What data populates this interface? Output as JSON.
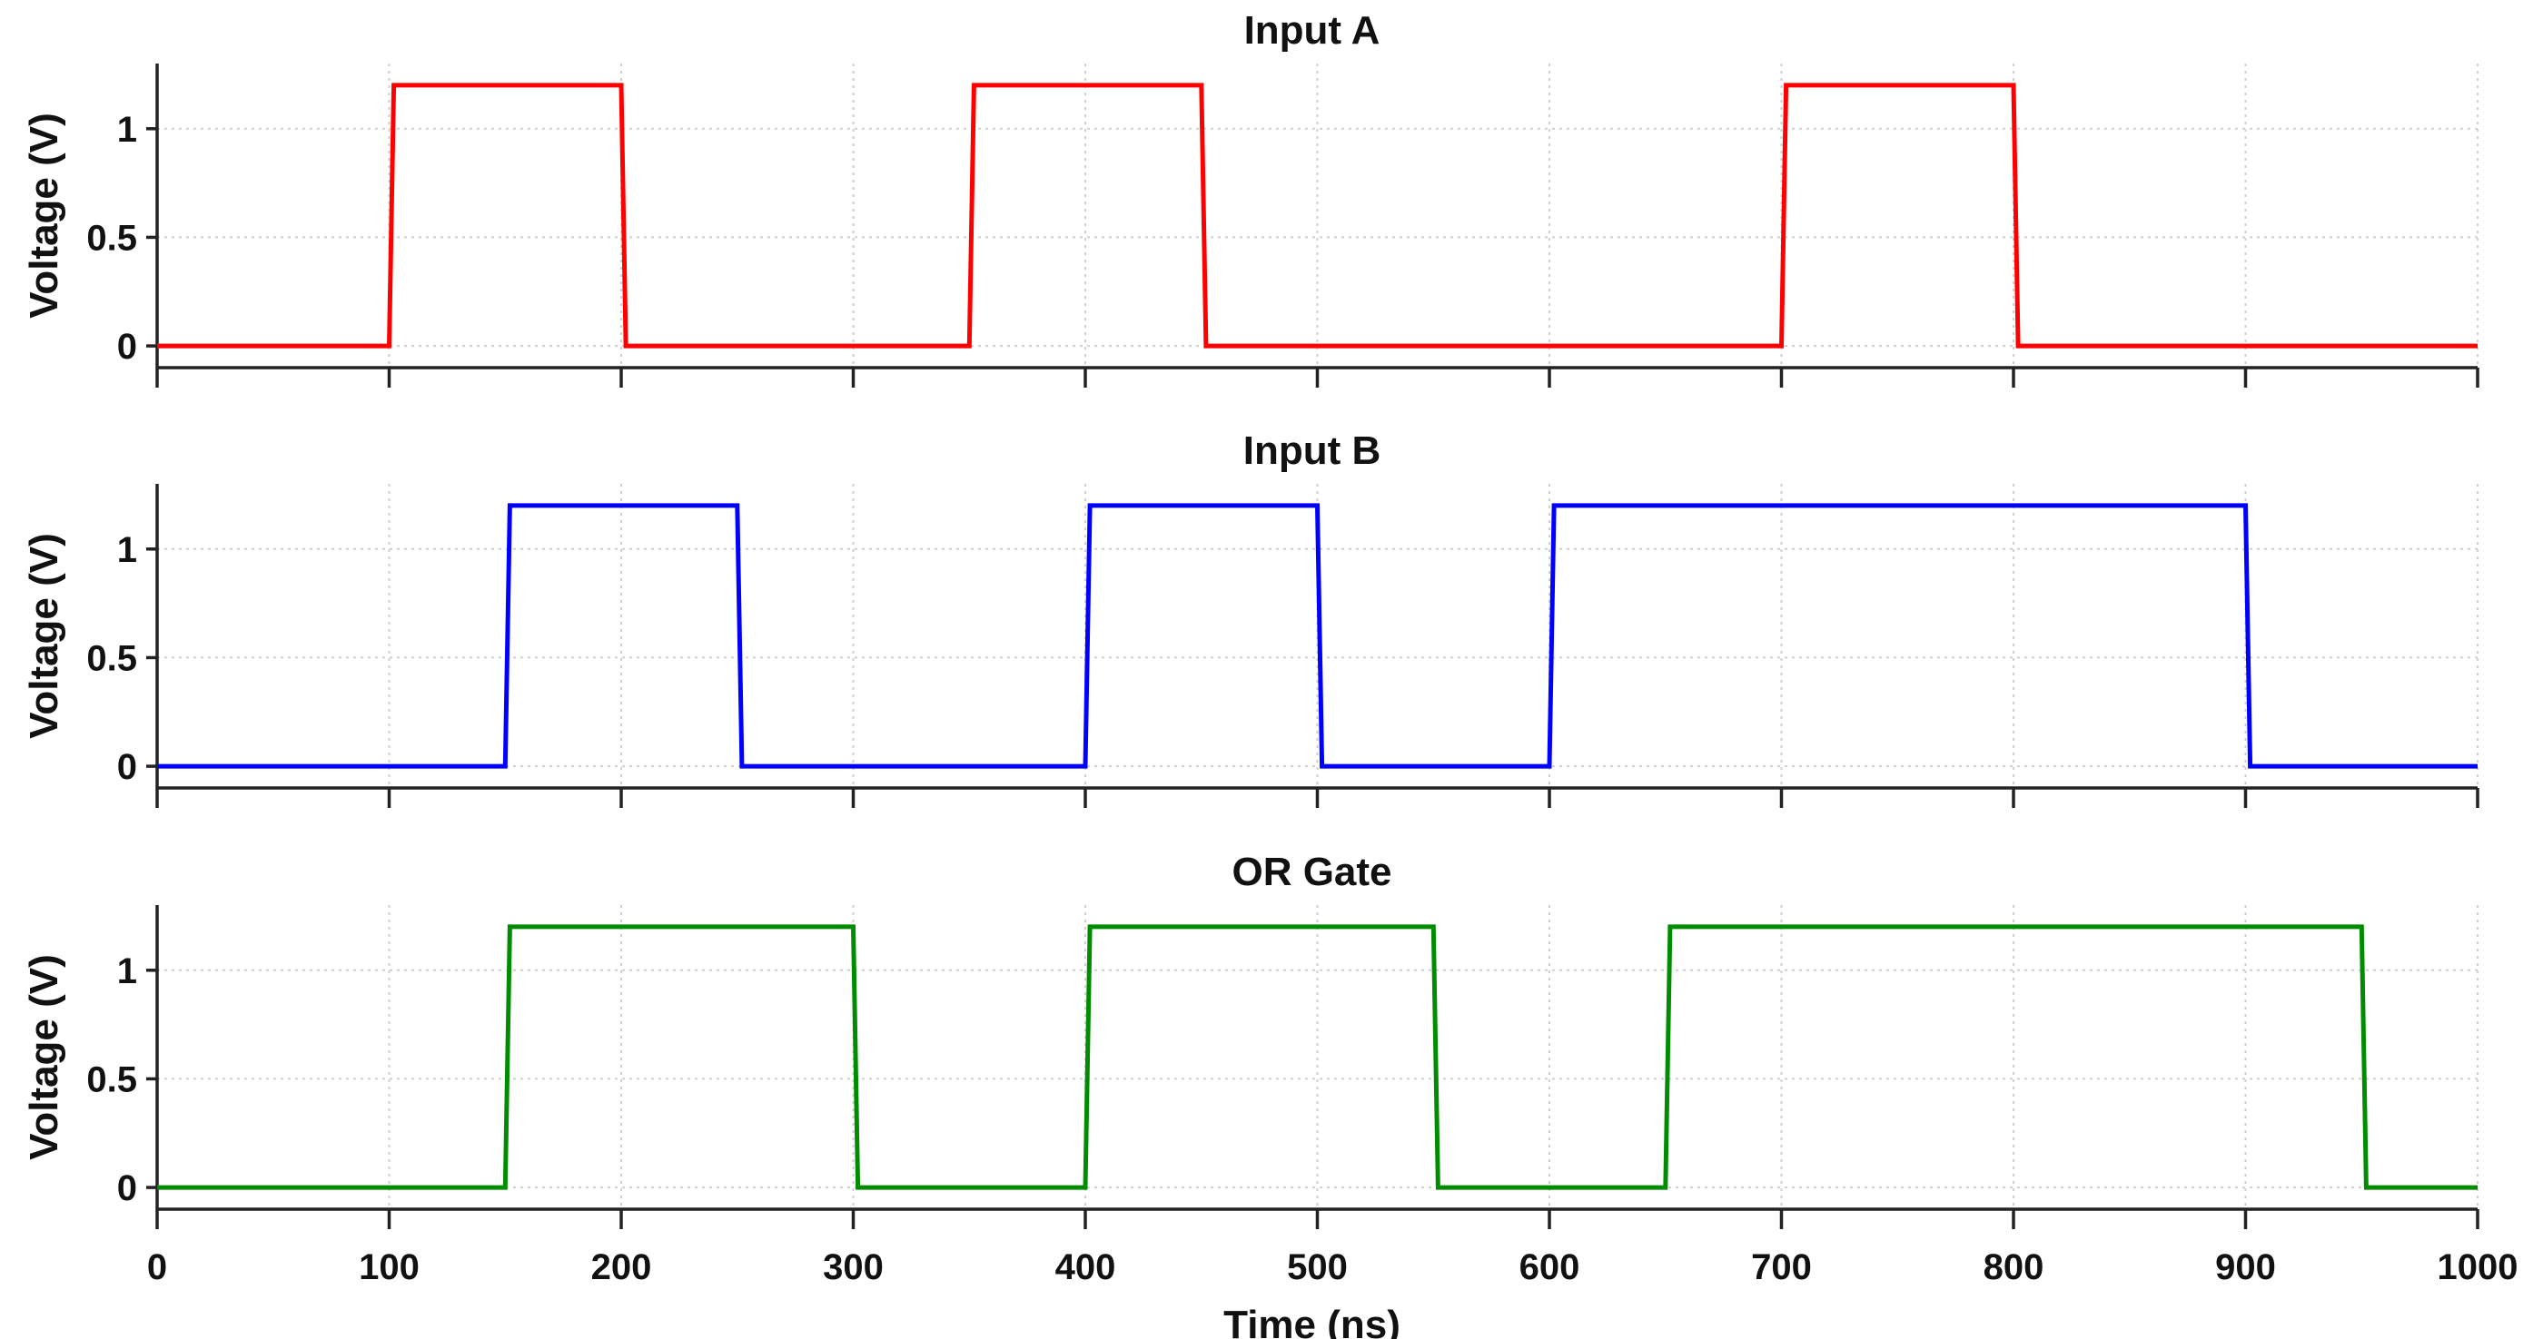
{
  "chart_data": [
    {
      "type": "line",
      "title": "Input A",
      "xlabel": "",
      "ylabel": "Voltage (V)",
      "xlim": [
        0,
        1000
      ],
      "ylim": [
        -0.1,
        1.3
      ],
      "yticks": [
        0,
        0.5,
        1
      ],
      "ytick_labels": [
        "0",
        "0.5",
        "1"
      ],
      "xticks": [
        0,
        100,
        200,
        300,
        400,
        500,
        600,
        700,
        800,
        900,
        1000
      ],
      "xtick_labels_shown": false,
      "grid": true,
      "series": [
        {
          "name": "Input A",
          "color": "#ff0000",
          "x": [
            0,
            100,
            102,
            200,
            202,
            350,
            352,
            450,
            452,
            700,
            702,
            800,
            802,
            1000
          ],
          "y": [
            0,
            0,
            1.2,
            1.2,
            0,
            0,
            1.2,
            1.2,
            0,
            0,
            1.2,
            1.2,
            0,
            0
          ]
        }
      ]
    },
    {
      "type": "line",
      "title": "Input B",
      "xlabel": "",
      "ylabel": "Voltage (V)",
      "xlim": [
        0,
        1000
      ],
      "ylim": [
        -0.1,
        1.3
      ],
      "yticks": [
        0,
        0.5,
        1
      ],
      "ytick_labels": [
        "0",
        "0.5",
        "1"
      ],
      "xticks": [
        0,
        100,
        200,
        300,
        400,
        500,
        600,
        700,
        800,
        900,
        1000
      ],
      "xtick_labels_shown": false,
      "grid": true,
      "series": [
        {
          "name": "Input B",
          "color": "#0000ff",
          "x": [
            0,
            150,
            152,
            250,
            252,
            400,
            402,
            500,
            502,
            600,
            602,
            900,
            902,
            1000
          ],
          "y": [
            0,
            0,
            1.2,
            1.2,
            0,
            0,
            1.2,
            1.2,
            0,
            0,
            1.2,
            1.2,
            0,
            0
          ]
        }
      ]
    },
    {
      "type": "line",
      "title": "OR Gate",
      "xlabel": "Time (ns)",
      "ylabel": "Voltage (V)",
      "xlim": [
        0,
        1000
      ],
      "ylim": [
        -0.1,
        1.3
      ],
      "yticks": [
        0,
        0.5,
        1
      ],
      "ytick_labels": [
        "0",
        "0.5",
        "1"
      ],
      "xticks": [
        0,
        100,
        200,
        300,
        400,
        500,
        600,
        700,
        800,
        900,
        1000
      ],
      "xtick_labels": [
        "0",
        "100",
        "200",
        "300",
        "400",
        "500",
        "600",
        "700",
        "800",
        "900",
        "1000"
      ],
      "xtick_labels_shown": true,
      "grid": true,
      "series": [
        {
          "name": "OR Gate",
          "color": "#008c00",
          "x": [
            0,
            150,
            152,
            300,
            302,
            400,
            402,
            550,
            552,
            650,
            652,
            950,
            952,
            1000
          ],
          "y": [
            0,
            0,
            1.2,
            1.2,
            0,
            0,
            1.2,
            1.2,
            0,
            0,
            1.2,
            1.2,
            0,
            0
          ]
        }
      ]
    }
  ]
}
